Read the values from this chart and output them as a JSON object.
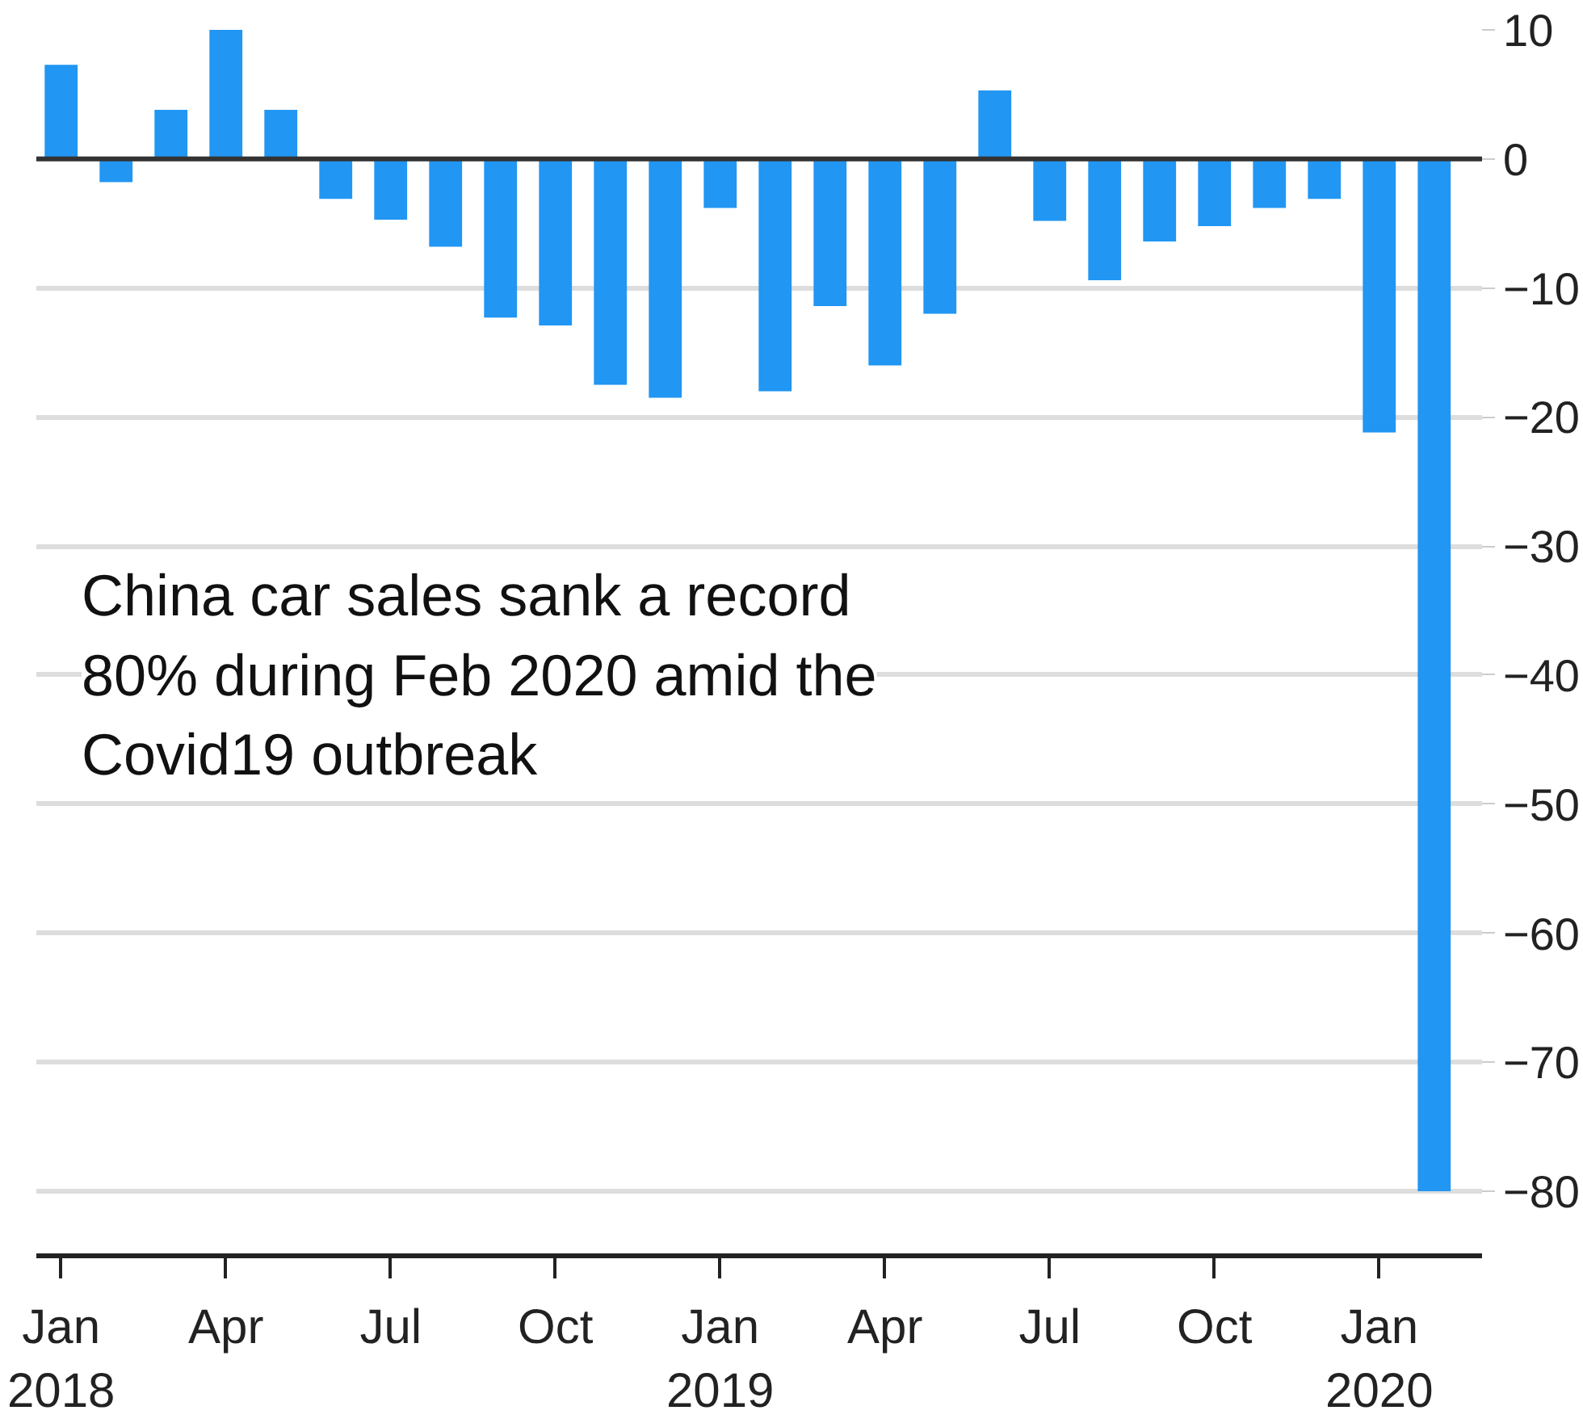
{
  "chart_data": {
    "type": "bar",
    "x": [
      "2018-01",
      "2018-02",
      "2018-03",
      "2018-04",
      "2018-05",
      "2018-06",
      "2018-07",
      "2018-08",
      "2018-09",
      "2018-10",
      "2018-11",
      "2018-12",
      "2019-01",
      "2019-02",
      "2019-03",
      "2019-04",
      "2019-05",
      "2019-06",
      "2019-07",
      "2019-08",
      "2019-09",
      "2019-10",
      "2019-11",
      "2019-12",
      "2020-01",
      "2020-02"
    ],
    "values": [
      7.3,
      -1.8,
      3.8,
      10,
      3.8,
      -3.1,
      -4.7,
      -6.8,
      -12.3,
      -12.9,
      -17.5,
      -18.5,
      -3.8,
      -18,
      -11.4,
      -16,
      -12,
      5.3,
      -4.8,
      -9.4,
      -6.4,
      -5.2,
      -3.8,
      -3.1,
      -21.2,
      -80
    ],
    "color": "#2196f3",
    "xlim": [
      "2017-12-18",
      "2020-02-28"
    ],
    "xticks": [
      {
        "value": "2018-01",
        "label": "Jan\n2018"
      },
      {
        "value": "2018-04",
        "label": "Apr"
      },
      {
        "value": "2018-07",
        "label": "Jul"
      },
      {
        "value": "2018-10",
        "label": "Oct"
      },
      {
        "value": "2019-01",
        "label": "Jan\n2019"
      },
      {
        "value": "2019-04",
        "label": "Apr"
      },
      {
        "value": "2019-07",
        "label": "Jul"
      },
      {
        "value": "2019-10",
        "label": "Oct"
      },
      {
        "value": "2020-01",
        "label": "Jan\n2020"
      }
    ],
    "ylim": [
      -85,
      10
    ],
    "yticks": [
      -80,
      -70,
      -60,
      -50,
      -40,
      -30,
      -20,
      -10,
      0,
      10
    ],
    "grid": "y",
    "ref_lines": [
      {
        "axis": "y",
        "value": 0,
        "color": "#333333"
      }
    ],
    "annotations": [
      "China car sales sank a record\n80% during Feb 2020 amid the\nCovid19 outbreak"
    ]
  }
}
